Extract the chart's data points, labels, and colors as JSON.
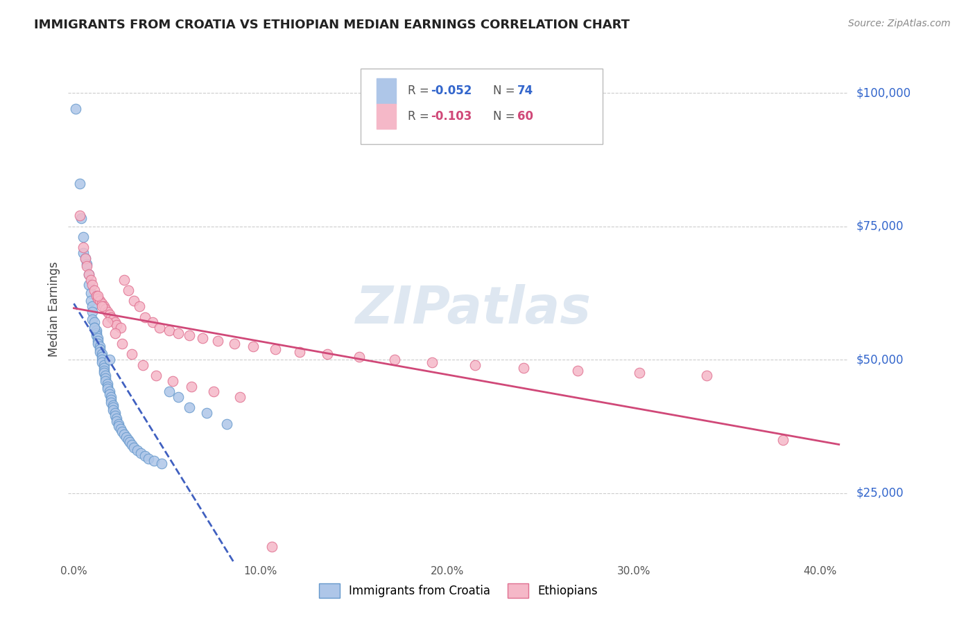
{
  "title": "IMMIGRANTS FROM CROATIA VS ETHIOPIAN MEDIAN EARNINGS CORRELATION CHART",
  "source": "Source: ZipAtlas.com",
  "ylabel": "Median Earnings",
  "yticks": [
    25000,
    50000,
    75000,
    100000
  ],
  "ytick_labels": [
    "$25,000",
    "$50,000",
    "$75,000",
    "$100,000"
  ],
  "ylim": [
    12000,
    107000
  ],
  "xlim": [
    -0.003,
    0.415
  ],
  "croatia_color": "#aec6e8",
  "croatia_edge_color": "#6699cc",
  "ethiopian_color": "#f5b8c8",
  "ethiopian_edge_color": "#e07090",
  "trendline_croatia_color": "#4060c0",
  "trendline_ethiopian_color": "#d04878",
  "watermark_color": "#c8d8e8",
  "background_color": "#ffffff",
  "croatia_R": "-0.052",
  "croatia_N": "74",
  "ethiopian_R": "-0.103",
  "ethiopian_N": "60",
  "croatia_x": [
    0.001,
    0.003,
    0.004,
    0.005,
    0.005,
    0.006,
    0.007,
    0.008,
    0.008,
    0.009,
    0.009,
    0.01,
    0.01,
    0.01,
    0.011,
    0.011,
    0.012,
    0.012,
    0.012,
    0.013,
    0.013,
    0.013,
    0.014,
    0.014,
    0.014,
    0.015,
    0.015,
    0.015,
    0.015,
    0.016,
    0.016,
    0.016,
    0.016,
    0.017,
    0.017,
    0.017,
    0.018,
    0.018,
    0.018,
    0.019,
    0.019,
    0.02,
    0.02,
    0.02,
    0.021,
    0.021,
    0.021,
    0.022,
    0.022,
    0.023,
    0.023,
    0.024,
    0.024,
    0.025,
    0.026,
    0.027,
    0.028,
    0.029,
    0.03,
    0.031,
    0.032,
    0.034,
    0.036,
    0.038,
    0.04,
    0.043,
    0.047,
    0.051,
    0.056,
    0.062,
    0.071,
    0.082,
    0.011,
    0.019
  ],
  "croatia_y": [
    97000,
    83000,
    76500,
    73000,
    70000,
    69000,
    68000,
    66000,
    64000,
    62500,
    61000,
    60000,
    59000,
    57500,
    57000,
    56000,
    55500,
    55000,
    54500,
    54000,
    53500,
    53000,
    52500,
    52000,
    51500,
    51000,
    50500,
    50000,
    49500,
    49000,
    48500,
    48000,
    47500,
    47000,
    46500,
    46000,
    45500,
    45000,
    44500,
    44000,
    43500,
    43000,
    42500,
    42000,
    41500,
    41000,
    40500,
    40000,
    39500,
    39000,
    38500,
    38000,
    37500,
    37000,
    36500,
    36000,
    35500,
    35000,
    34500,
    34000,
    33500,
    33000,
    32500,
    32000,
    31500,
    31000,
    30500,
    44000,
    43000,
    41000,
    40000,
    38000,
    56000,
    50000
  ],
  "ethiopian_x": [
    0.003,
    0.005,
    0.006,
    0.007,
    0.008,
    0.009,
    0.01,
    0.011,
    0.012,
    0.013,
    0.014,
    0.015,
    0.016,
    0.017,
    0.018,
    0.019,
    0.02,
    0.021,
    0.022,
    0.023,
    0.025,
    0.027,
    0.029,
    0.032,
    0.035,
    0.038,
    0.042,
    0.046,
    0.051,
    0.056,
    0.062,
    0.069,
    0.077,
    0.086,
    0.096,
    0.108,
    0.121,
    0.136,
    0.153,
    0.172,
    0.192,
    0.215,
    0.241,
    0.27,
    0.303,
    0.339,
    0.38,
    0.013,
    0.015,
    0.018,
    0.022,
    0.026,
    0.031,
    0.037,
    0.044,
    0.053,
    0.063,
    0.075,
    0.089,
    0.106
  ],
  "ethiopian_y": [
    77000,
    71000,
    69000,
    67500,
    66000,
    65000,
    64000,
    63000,
    62000,
    61500,
    61000,
    60500,
    60000,
    59500,
    59000,
    58500,
    58000,
    57500,
    57000,
    56500,
    56000,
    65000,
    63000,
    61000,
    60000,
    58000,
    57000,
    56000,
    55500,
    55000,
    54500,
    54000,
    53500,
    53000,
    52500,
    52000,
    51500,
    51000,
    50500,
    50000,
    49500,
    49000,
    48500,
    48000,
    47500,
    47000,
    35000,
    62000,
    60000,
    57000,
    55000,
    53000,
    51000,
    49000,
    47000,
    46000,
    45000,
    44000,
    43000,
    15000
  ]
}
